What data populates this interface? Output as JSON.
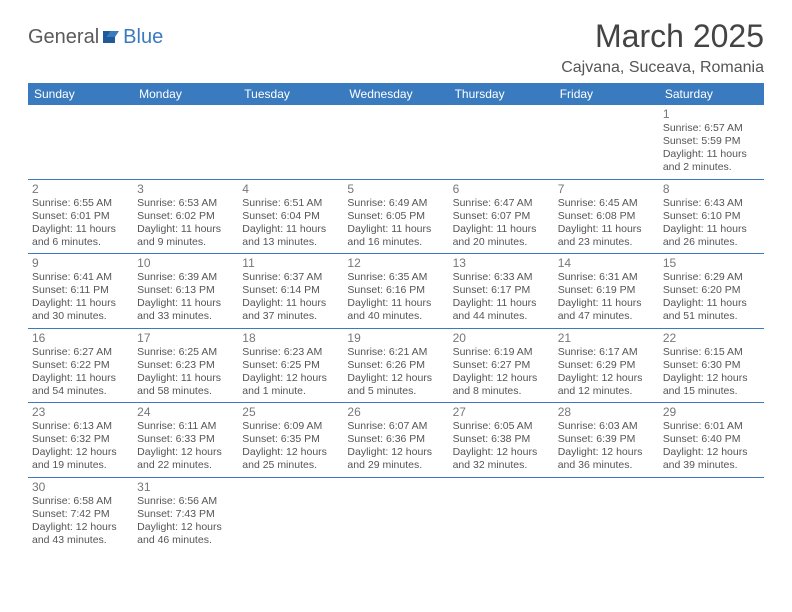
{
  "logo": {
    "part1": "General",
    "part2": "Blue"
  },
  "title": {
    "month": "March 2025",
    "location": "Cajvana, Suceava, Romania"
  },
  "colors": {
    "header_bg": "#3a7bbf",
    "border": "#3a7bbf",
    "text": "#555",
    "daynum": "#777"
  },
  "day_headers": [
    "Sunday",
    "Monday",
    "Tuesday",
    "Wednesday",
    "Thursday",
    "Friday",
    "Saturday"
  ],
  "weeks": [
    [
      null,
      null,
      null,
      null,
      null,
      null,
      {
        "n": "1",
        "sr": "6:57 AM",
        "ss": "5:59 PM",
        "dl": "11 hours and 2 minutes."
      }
    ],
    [
      {
        "n": "2",
        "sr": "6:55 AM",
        "ss": "6:01 PM",
        "dl": "11 hours and 6 minutes."
      },
      {
        "n": "3",
        "sr": "6:53 AM",
        "ss": "6:02 PM",
        "dl": "11 hours and 9 minutes."
      },
      {
        "n": "4",
        "sr": "6:51 AM",
        "ss": "6:04 PM",
        "dl": "11 hours and 13 minutes."
      },
      {
        "n": "5",
        "sr": "6:49 AM",
        "ss": "6:05 PM",
        "dl": "11 hours and 16 minutes."
      },
      {
        "n": "6",
        "sr": "6:47 AM",
        "ss": "6:07 PM",
        "dl": "11 hours and 20 minutes."
      },
      {
        "n": "7",
        "sr": "6:45 AM",
        "ss": "6:08 PM",
        "dl": "11 hours and 23 minutes."
      },
      {
        "n": "8",
        "sr": "6:43 AM",
        "ss": "6:10 PM",
        "dl": "11 hours and 26 minutes."
      }
    ],
    [
      {
        "n": "9",
        "sr": "6:41 AM",
        "ss": "6:11 PM",
        "dl": "11 hours and 30 minutes."
      },
      {
        "n": "10",
        "sr": "6:39 AM",
        "ss": "6:13 PM",
        "dl": "11 hours and 33 minutes."
      },
      {
        "n": "11",
        "sr": "6:37 AM",
        "ss": "6:14 PM",
        "dl": "11 hours and 37 minutes."
      },
      {
        "n": "12",
        "sr": "6:35 AM",
        "ss": "6:16 PM",
        "dl": "11 hours and 40 minutes."
      },
      {
        "n": "13",
        "sr": "6:33 AM",
        "ss": "6:17 PM",
        "dl": "11 hours and 44 minutes."
      },
      {
        "n": "14",
        "sr": "6:31 AM",
        "ss": "6:19 PM",
        "dl": "11 hours and 47 minutes."
      },
      {
        "n": "15",
        "sr": "6:29 AM",
        "ss": "6:20 PM",
        "dl": "11 hours and 51 minutes."
      }
    ],
    [
      {
        "n": "16",
        "sr": "6:27 AM",
        "ss": "6:22 PM",
        "dl": "11 hours and 54 minutes."
      },
      {
        "n": "17",
        "sr": "6:25 AM",
        "ss": "6:23 PM",
        "dl": "11 hours and 58 minutes."
      },
      {
        "n": "18",
        "sr": "6:23 AM",
        "ss": "6:25 PM",
        "dl": "12 hours and 1 minute."
      },
      {
        "n": "19",
        "sr": "6:21 AM",
        "ss": "6:26 PM",
        "dl": "12 hours and 5 minutes."
      },
      {
        "n": "20",
        "sr": "6:19 AM",
        "ss": "6:27 PM",
        "dl": "12 hours and 8 minutes."
      },
      {
        "n": "21",
        "sr": "6:17 AM",
        "ss": "6:29 PM",
        "dl": "12 hours and 12 minutes."
      },
      {
        "n": "22",
        "sr": "6:15 AM",
        "ss": "6:30 PM",
        "dl": "12 hours and 15 minutes."
      }
    ],
    [
      {
        "n": "23",
        "sr": "6:13 AM",
        "ss": "6:32 PM",
        "dl": "12 hours and 19 minutes."
      },
      {
        "n": "24",
        "sr": "6:11 AM",
        "ss": "6:33 PM",
        "dl": "12 hours and 22 minutes."
      },
      {
        "n": "25",
        "sr": "6:09 AM",
        "ss": "6:35 PM",
        "dl": "12 hours and 25 minutes."
      },
      {
        "n": "26",
        "sr": "6:07 AM",
        "ss": "6:36 PM",
        "dl": "12 hours and 29 minutes."
      },
      {
        "n": "27",
        "sr": "6:05 AM",
        "ss": "6:38 PM",
        "dl": "12 hours and 32 minutes."
      },
      {
        "n": "28",
        "sr": "6:03 AM",
        "ss": "6:39 PM",
        "dl": "12 hours and 36 minutes."
      },
      {
        "n": "29",
        "sr": "6:01 AM",
        "ss": "6:40 PM",
        "dl": "12 hours and 39 minutes."
      }
    ],
    [
      {
        "n": "30",
        "sr": "6:58 AM",
        "ss": "7:42 PM",
        "dl": "12 hours and 43 minutes."
      },
      {
        "n": "31",
        "sr": "6:56 AM",
        "ss": "7:43 PM",
        "dl": "12 hours and 46 minutes."
      },
      null,
      null,
      null,
      null,
      null
    ]
  ],
  "labels": {
    "sunrise": "Sunrise:",
    "sunset": "Sunset:",
    "daylight": "Daylight:"
  }
}
